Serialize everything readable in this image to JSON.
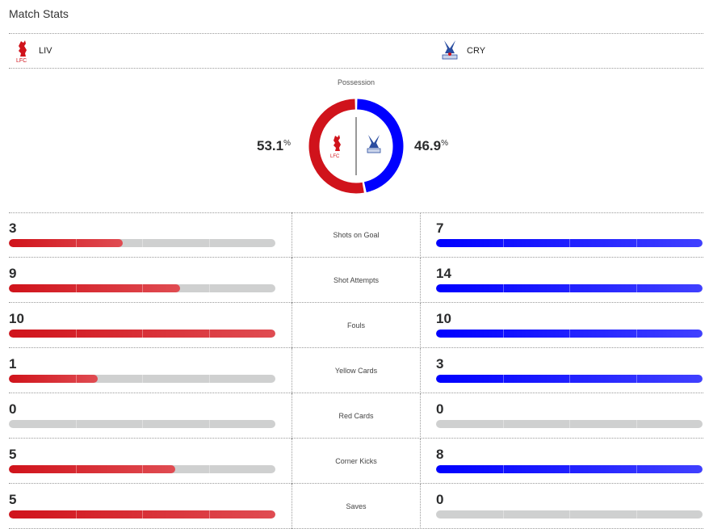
{
  "title": "Match Stats",
  "home": {
    "abbr": "LIV",
    "logo": "liverpool-crest-icon",
    "color": "#d0131b"
  },
  "away": {
    "abbr": "CRY",
    "logo": "crystal-palace-crest-icon",
    "color": "#0000ff"
  },
  "possession": {
    "label": "Possession",
    "home_value": "53.1",
    "away_value": "46.9",
    "unit": "%",
    "home": 53.1,
    "away": 46.9
  },
  "stats": [
    {
      "label": "Shots on Goal",
      "home": "3",
      "away": "7"
    },
    {
      "label": "Shot Attempts",
      "home": "9",
      "away": "14"
    },
    {
      "label": "Fouls",
      "home": "10",
      "away": "10"
    },
    {
      "label": "Yellow Cards",
      "home": "1",
      "away": "3"
    },
    {
      "label": "Red Cards",
      "home": "0",
      "away": "0"
    },
    {
      "label": "Corner Kicks",
      "home": "5",
      "away": "8"
    },
    {
      "label": "Saves",
      "home": "5",
      "away": "0"
    }
  ]
}
